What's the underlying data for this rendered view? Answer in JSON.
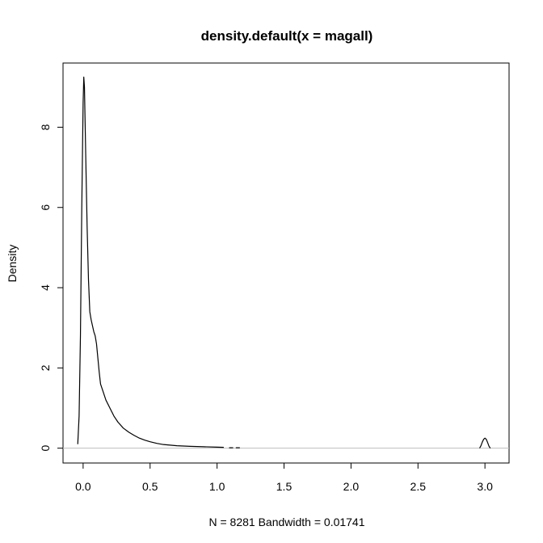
{
  "chart_data": {
    "type": "line",
    "title": "density.default(x = magall)",
    "xlabel": "N = 8281   Bandwidth = 0.01741",
    "ylabel": "Density",
    "xlim": [
      -0.15,
      3.18
    ],
    "ylim": [
      -0.37,
      9.6
    ],
    "x_ticks": [
      {
        "value": 0.0,
        "label": "0.0"
      },
      {
        "value": 0.5,
        "label": "0.5"
      },
      {
        "value": 1.0,
        "label": "1.0"
      },
      {
        "value": 1.5,
        "label": "1.5"
      },
      {
        "value": 2.0,
        "label": "2.0"
      },
      {
        "value": 2.5,
        "label": "2.5"
      },
      {
        "value": 3.0,
        "label": "3.0"
      }
    ],
    "y_ticks": [
      {
        "value": 0,
        "label": "0"
      },
      {
        "value": 2,
        "label": "2"
      },
      {
        "value": 4,
        "label": "4"
      },
      {
        "value": 6,
        "label": "6"
      },
      {
        "value": 8,
        "label": "8"
      }
    ],
    "baseline": {
      "y": 0,
      "color": "#bebebe"
    },
    "grid": false,
    "line_color": "#000000",
    "series": [
      {
        "x": [
          -0.04,
          -0.03,
          -0.02,
          -0.01,
          0.0,
          0.005,
          0.01,
          0.02,
          0.03,
          0.04,
          0.05,
          0.06,
          0.07,
          0.08,
          0.09,
          0.1,
          0.11,
          0.12,
          0.13,
          0.15,
          0.17,
          0.2,
          0.23,
          0.26,
          0.3,
          0.34,
          0.38,
          0.42,
          0.46,
          0.5,
          0.55,
          0.6,
          0.7,
          0.8,
          0.9,
          1.0,
          1.05
        ],
        "y": [
          0.1,
          0.8,
          2.8,
          6.0,
          8.6,
          9.25,
          9.0,
          7.2,
          5.5,
          4.2,
          3.4,
          3.2,
          3.05,
          2.9,
          2.8,
          2.6,
          2.25,
          1.9,
          1.6,
          1.4,
          1.2,
          1.0,
          0.8,
          0.65,
          0.5,
          0.4,
          0.32,
          0.25,
          0.2,
          0.16,
          0.12,
          0.09,
          0.06,
          0.045,
          0.035,
          0.025,
          0.02
        ]
      },
      {
        "x": [
          1.09,
          1.12
        ],
        "y": [
          0.01,
          0.01
        ]
      },
      {
        "x": [
          1.14,
          1.17
        ],
        "y": [
          0.01,
          0.01
        ]
      },
      {
        "x": [
          2.96,
          2.97,
          2.98,
          2.99,
          3.0,
          3.01,
          3.02,
          3.03,
          3.04
        ],
        "y": [
          0.0,
          0.06,
          0.15,
          0.22,
          0.25,
          0.22,
          0.14,
          0.05,
          0.0
        ]
      }
    ]
  }
}
